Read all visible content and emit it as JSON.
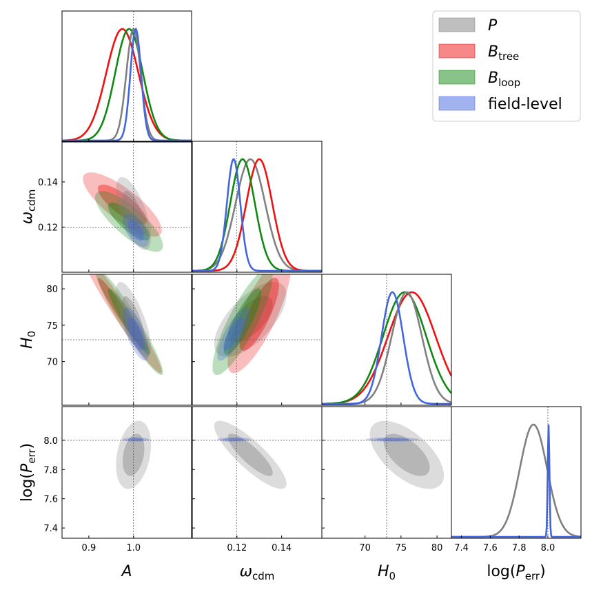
{
  "chart_data": {
    "type": "corner",
    "colors": {
      "P": "#808080",
      "B_tree": "#ee1111",
      "B_loop": "#118811",
      "field_level": "#4466dd"
    },
    "legend": {
      "placement": "top-right",
      "entries": [
        {
          "key": "P",
          "main": "P",
          "sub": ""
        },
        {
          "key": "B_tree",
          "main": "B",
          "sub": "tree"
        },
        {
          "key": "B_loop",
          "main": "B",
          "sub": "loop"
        },
        {
          "key": "field_level",
          "main": "field-level",
          "sub": ""
        }
      ]
    },
    "parameters": [
      {
        "key": "A",
        "label_main": "A",
        "label_sub": "",
        "range": [
          0.84,
          1.13
        ],
        "ticks": [
          "0.9",
          "1.0"
        ],
        "tick_values": [
          0.9,
          1.0
        ],
        "truth": 1.0
      },
      {
        "key": "omega_cdm",
        "label_main": "ω",
        "label_sub": "cdm",
        "range": [
          0.1,
          0.158
        ],
        "ticks": [
          "0.12",
          "0.14"
        ],
        "tick_values": [
          0.12,
          0.14
        ],
        "truth": 0.1198
      },
      {
        "key": "H0",
        "label_main": "H",
        "label_sub": "0",
        "range": [
          64,
          82
        ],
        "ticks": [
          "70",
          "75",
          "80"
        ],
        "tick_values": [
          70,
          75,
          80
        ],
        "truth": 73
      },
      {
        "key": "logPerr",
        "label_main": "log(P",
        "label_sub": "err",
        "label_tail": ")",
        "range": [
          7.33,
          8.23
        ],
        "ticks": [
          "7.4",
          "7.6",
          "7.8",
          "8.0"
        ],
        "tick_values": [
          7.4,
          7.6,
          7.8,
          8.0
        ],
        "truth": 8.0
      }
    ],
    "marginals": {
      "A": [
        {
          "series": "B_tree",
          "mean": 0.975,
          "sd": 0.036
        },
        {
          "series": "B_loop",
          "mean": 0.99,
          "sd": 0.031
        },
        {
          "series": "P",
          "mean": 1.0,
          "sd": 0.016
        },
        {
          "series": "field_level",
          "mean": 1.005,
          "sd": 0.012
        }
      ],
      "omega_cdm": [
        {
          "series": "P",
          "mean": 0.126,
          "sd": 0.0066
        },
        {
          "series": "B_tree",
          "mean": 0.13,
          "sd": 0.0058
        },
        {
          "series": "B_loop",
          "mean": 0.1225,
          "sd": 0.0055
        },
        {
          "series": "field_level",
          "mean": 0.1185,
          "sd": 0.003
        }
      ],
      "H0": [
        {
          "series": "B_tree",
          "mean": 76.5,
          "sd": 3.3
        },
        {
          "series": "B_loop",
          "mean": 75.5,
          "sd": 3.0
        },
        {
          "series": "P",
          "mean": 75.8,
          "sd": 2.1
        },
        {
          "series": "field_level",
          "mean": 73.8,
          "sd": 1.5
        }
      ],
      "logPerr": [
        {
          "series": "P",
          "mean": 7.9,
          "sd": 0.095
        },
        {
          "series": "field_level",
          "mean": 8.005,
          "sd": 0.006
        }
      ]
    },
    "contours_2d": [
      {
        "row": "omega_cdm",
        "col": "A",
        "series": [
          {
            "series": "B_tree",
            "mean": [
              0.975,
              0.13
            ],
            "sd": [
              0.036,
              0.0058
            ],
            "rho": -0.8
          },
          {
            "series": "B_loop",
            "mean": [
              0.99,
              0.1225
            ],
            "sd": [
              0.031,
              0.0055
            ],
            "rho": -0.8
          },
          {
            "series": "P",
            "mean": [
              1.0,
              0.126
            ],
            "sd": [
              0.016,
              0.0066
            ],
            "rho": -0.65
          },
          {
            "series": "field_level",
            "mean": [
              1.005,
              0.1185
            ],
            "sd": [
              0.012,
              0.003
            ],
            "rho": -0.6
          }
        ]
      },
      {
        "row": "H0",
        "col": "A",
        "series": [
          {
            "series": "B_tree",
            "mean": [
              0.975,
              76.5
            ],
            "sd": [
              0.036,
              3.3
            ],
            "rho": -0.97
          },
          {
            "series": "B_loop",
            "mean": [
              0.99,
              75.5
            ],
            "sd": [
              0.031,
              3.0
            ],
            "rho": -0.95
          },
          {
            "series": "P",
            "mean": [
              1.0,
              75.8
            ],
            "sd": [
              0.016,
              2.1
            ],
            "rho": -0.75
          },
          {
            "series": "field_level",
            "mean": [
              1.005,
              73.8
            ],
            "sd": [
              0.012,
              1.5
            ],
            "rho": -0.7
          }
        ]
      },
      {
        "row": "H0",
        "col": "omega_cdm",
        "series": [
          {
            "series": "P",
            "mean": [
              0.126,
              75.8
            ],
            "sd": [
              0.0066,
              2.1
            ],
            "rho": 0.65
          },
          {
            "series": "B_tree",
            "mean": [
              0.13,
              76.5
            ],
            "sd": [
              0.0058,
              3.3
            ],
            "rho": 0.8
          },
          {
            "series": "B_loop",
            "mean": [
              0.1225,
              75.5
            ],
            "sd": [
              0.0055,
              3.0
            ],
            "rho": 0.85
          },
          {
            "series": "field_level",
            "mean": [
              0.1185,
              73.8
            ],
            "sd": [
              0.003,
              1.5
            ],
            "rho": 0.8
          }
        ]
      },
      {
        "row": "logPerr",
        "col": "A",
        "series": [
          {
            "series": "P",
            "mean": [
              1.0,
              7.9
            ],
            "sd": [
              0.016,
              0.095
            ],
            "rho": 0.3
          },
          {
            "series": "field_level",
            "mean": [
              1.005,
              8.005
            ],
            "sd": [
              0.012,
              0.006
            ],
            "rho": 0.0
          }
        ]
      },
      {
        "row": "logPerr",
        "col": "omega_cdm",
        "series": [
          {
            "series": "P",
            "mean": [
              0.126,
              7.9
            ],
            "sd": [
              0.0066,
              0.095
            ],
            "rho": -0.85
          },
          {
            "series": "field_level",
            "mean": [
              0.1185,
              8.005
            ],
            "sd": [
              0.003,
              0.006
            ],
            "rho": 0.0
          }
        ]
      },
      {
        "row": "logPerr",
        "col": "H0",
        "series": [
          {
            "series": "P",
            "mean": [
              75.8,
              7.9
            ],
            "sd": [
              2.1,
              0.095
            ],
            "rho": -0.6
          },
          {
            "series": "field_level",
            "mean": [
              73.8,
              8.005
            ],
            "sd": [
              1.5,
              0.006
            ],
            "rho": 0.0
          }
        ]
      }
    ],
    "grid": false
  }
}
